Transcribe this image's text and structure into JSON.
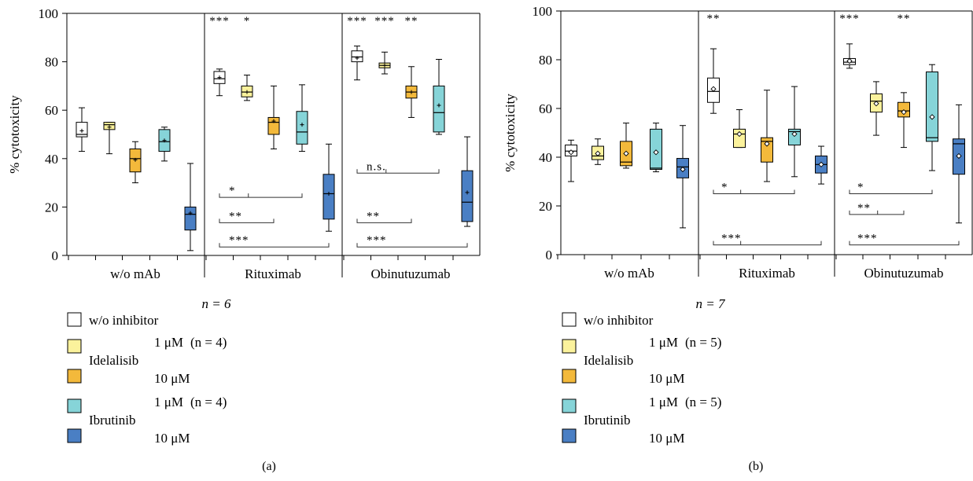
{
  "colors": {
    "w_o_inhibitor": "#ffffff",
    "idelalisib_1uM": "#fbf29c",
    "idelalisib_10uM": "#f3b93b",
    "ibrutinib_1uM": "#86d4d8",
    "ibrutinib_10uM": "#4a7fc4"
  },
  "legend": {
    "w_o_inhibitor": "w/o inhibitor",
    "idelalisib": "Idelalisib",
    "ibrutinib": "Ibrutinib",
    "dose_1uM": "1 μM",
    "dose_10uM": "10 μM",
    "n_idelalisib_a": "(n = 4)",
    "n_ibrutinib_a": "(n = 4)",
    "n_idelalisib_b": "(n = 5)",
    "n_ibrutinib_b": "(n = 5)"
  },
  "chart_data": [
    {
      "type": "box",
      "panel_label": "(a)",
      "n_label": "n = 6",
      "ylabel": "% cytotoxicity",
      "ylim": [
        0,
        100
      ],
      "yticks": [
        0,
        20,
        40,
        60,
        80,
        100
      ],
      "mean_marker": "+",
      "groups": [
        "w/o mAb",
        "Rituximab",
        "Obinutuzumab"
      ],
      "series": [
        "w/o inhibitor",
        "Idelalisib 1 μM",
        "Idelalisib 10 μM",
        "Ibrutinib 1 μM",
        "Ibrutinib 10 μM"
      ],
      "boxes": [
        [
          {
            "min": 43,
            "q1": 49,
            "median": 50,
            "q3": 55,
            "max": 61,
            "mean": 51.5
          },
          {
            "min": 42,
            "q1": 52,
            "median": 54,
            "q3": 55,
            "max": 55,
            "mean": 53
          },
          {
            "min": 30,
            "q1": 34.5,
            "median": 40,
            "q3": 44,
            "max": 47,
            "mean": 39.5
          },
          {
            "min": 39,
            "q1": 43,
            "median": 47,
            "q3": 52,
            "max": 53,
            "mean": 47.5
          },
          {
            "min": 2,
            "q1": 10.5,
            "median": 17,
            "q3": 20,
            "max": 38,
            "mean": 17.5
          }
        ],
        [
          {
            "min": 66,
            "q1": 71,
            "median": 73,
            "q3": 76,
            "max": 77,
            "mean": 73.5
          },
          {
            "min": 64,
            "q1": 65.5,
            "median": 67.5,
            "q3": 70,
            "max": 74.5,
            "mean": 67.5
          },
          {
            "min": 44,
            "q1": 50,
            "median": 55,
            "q3": 57,
            "max": 70,
            "mean": 55.5
          },
          {
            "min": 43,
            "q1": 46,
            "median": 51,
            "q3": 59.5,
            "max": 70.5,
            "mean": 54
          },
          {
            "min": 10,
            "q1": 15,
            "median": 25.5,
            "q3": 33.5,
            "max": 46,
            "mean": 25.5
          }
        ],
        [
          {
            "min": 72.5,
            "q1": 80,
            "median": 82,
            "q3": 84.5,
            "max": 86.5,
            "mean": 81.5
          },
          {
            "min": 75,
            "q1": 77.5,
            "median": 78.5,
            "q3": 79.5,
            "max": 84,
            "mean": 78.5
          },
          {
            "min": 57,
            "q1": 65,
            "median": 67.5,
            "q3": 70,
            "max": 78,
            "mean": 67.5
          },
          {
            "min": 50,
            "q1": 51,
            "median": 59,
            "q3": 70,
            "max": 81,
            "mean": 62
          },
          {
            "min": 12,
            "q1": 14,
            "median": 22,
            "q3": 35,
            "max": 49,
            "mean": 26
          }
        ]
      ],
      "significance_top": [
        {
          "group": 1,
          "box": 0,
          "text": "***"
        },
        {
          "group": 1,
          "box": 1,
          "text": "*"
        },
        {
          "group": 2,
          "box": 0,
          "text": "***"
        },
        {
          "group": 2,
          "box": 1,
          "text": "***"
        },
        {
          "group": 2,
          "box": 2,
          "text": "**"
        }
      ],
      "brackets": [
        {
          "group": 1,
          "from": 0,
          "to": 3,
          "mid": 1,
          "y": 24,
          "text": "*"
        },
        {
          "group": 1,
          "from": 0,
          "to": 2,
          "y": 13.5,
          "text": "**"
        },
        {
          "group": 1,
          "from": 0,
          "to": 4,
          "y": 3.5,
          "text": "***"
        },
        {
          "group": 2,
          "from": 0,
          "to": 3,
          "mid": 1,
          "y": 34,
          "text": "n.s."
        },
        {
          "group": 2,
          "from": 0,
          "to": 2,
          "y": 13.5,
          "text": "**"
        },
        {
          "group": 2,
          "from": 0,
          "to": 4,
          "y": 3.5,
          "text": "***"
        }
      ]
    },
    {
      "type": "box",
      "panel_label": "(b)",
      "n_label": "n = 7",
      "ylabel": "% cytotoxicity",
      "ylim": [
        0,
        100
      ],
      "yticks": [
        0,
        20,
        40,
        60,
        80,
        100
      ],
      "mean_marker": "diamond",
      "groups": [
        "w/o mAb",
        "Rituximab",
        "Obinutuzumab"
      ],
      "series": [
        "w/o inhibitor",
        "Idelalisib 1 μM",
        "Idelalisib 10 μM",
        "Ibrutinib 1 μM",
        "Ibrutinib 10 μM"
      ],
      "boxes": [
        [
          {
            "min": 30,
            "q1": 40.5,
            "median": 42.5,
            "q3": 45,
            "max": 47,
            "mean": 42
          },
          {
            "min": 37,
            "q1": 39,
            "median": 40.5,
            "q3": 44.5,
            "max": 47.5,
            "mean": 41.5
          },
          {
            "min": 35.5,
            "q1": 36.5,
            "median": 38,
            "q3": 46.5,
            "max": 54,
            "mean": 41.5
          },
          {
            "min": 34,
            "q1": 35,
            "median": 35.5,
            "q3": 51.5,
            "max": 54,
            "mean": 42
          },
          {
            "min": 11,
            "q1": 31.5,
            "median": 36,
            "q3": 39.5,
            "max": 53,
            "mean": 35
          }
        ],
        [
          {
            "min": 58,
            "q1": 62.5,
            "median": 67,
            "q3": 72.5,
            "max": 84.5,
            "mean": 68
          },
          {
            "min": 44,
            "q1": 44,
            "median": 49.5,
            "q3": 51.5,
            "max": 59.5,
            "mean": 49.5
          },
          {
            "min": 30,
            "q1": 38,
            "median": 46.5,
            "q3": 48,
            "max": 67.5,
            "mean": 45.5
          },
          {
            "min": 32,
            "q1": 45,
            "median": 50.5,
            "q3": 51.5,
            "max": 69,
            "mean": 49.5
          },
          {
            "min": 29,
            "q1": 33.5,
            "median": 37,
            "q3": 40.5,
            "max": 44.5,
            "mean": 37
          }
        ],
        [
          {
            "min": 76.5,
            "q1": 78,
            "median": 79,
            "q3": 80.5,
            "max": 86.5,
            "mean": 79.5
          },
          {
            "min": 49,
            "q1": 58.5,
            "median": 63,
            "q3": 66,
            "max": 71,
            "mean": 62
          },
          {
            "min": 44,
            "q1": 56.5,
            "median": 59,
            "q3": 62.5,
            "max": 66.5,
            "mean": 58.5
          },
          {
            "min": 34.5,
            "q1": 46.5,
            "median": 48,
            "q3": 75,
            "max": 78,
            "mean": 56.5
          },
          {
            "min": 13,
            "q1": 33,
            "median": 45.5,
            "q3": 47.5,
            "max": 61.5,
            "mean": 40.5
          }
        ]
      ],
      "significance_top": [
        {
          "group": 1,
          "box": 0,
          "text": "**"
        },
        {
          "group": 2,
          "box": 0,
          "text": "***"
        },
        {
          "group": 2,
          "box": 2,
          "text": "**"
        }
      ],
      "brackets": [
        {
          "group": 1,
          "from": 0,
          "to": 3,
          "mid": 1,
          "y": 25,
          "text": "*"
        },
        {
          "group": 1,
          "from": 0,
          "to": 4,
          "mid": 1,
          "y": 4,
          "text": "***"
        },
        {
          "group": 2,
          "from": 0,
          "to": 3,
          "y": 25,
          "text": "*"
        },
        {
          "group": 2,
          "from": 0,
          "to": 2,
          "mid": 1,
          "y": 16.5,
          "text": "**"
        },
        {
          "group": 2,
          "from": 0,
          "to": 4,
          "y": 4,
          "text": "***"
        }
      ]
    }
  ]
}
